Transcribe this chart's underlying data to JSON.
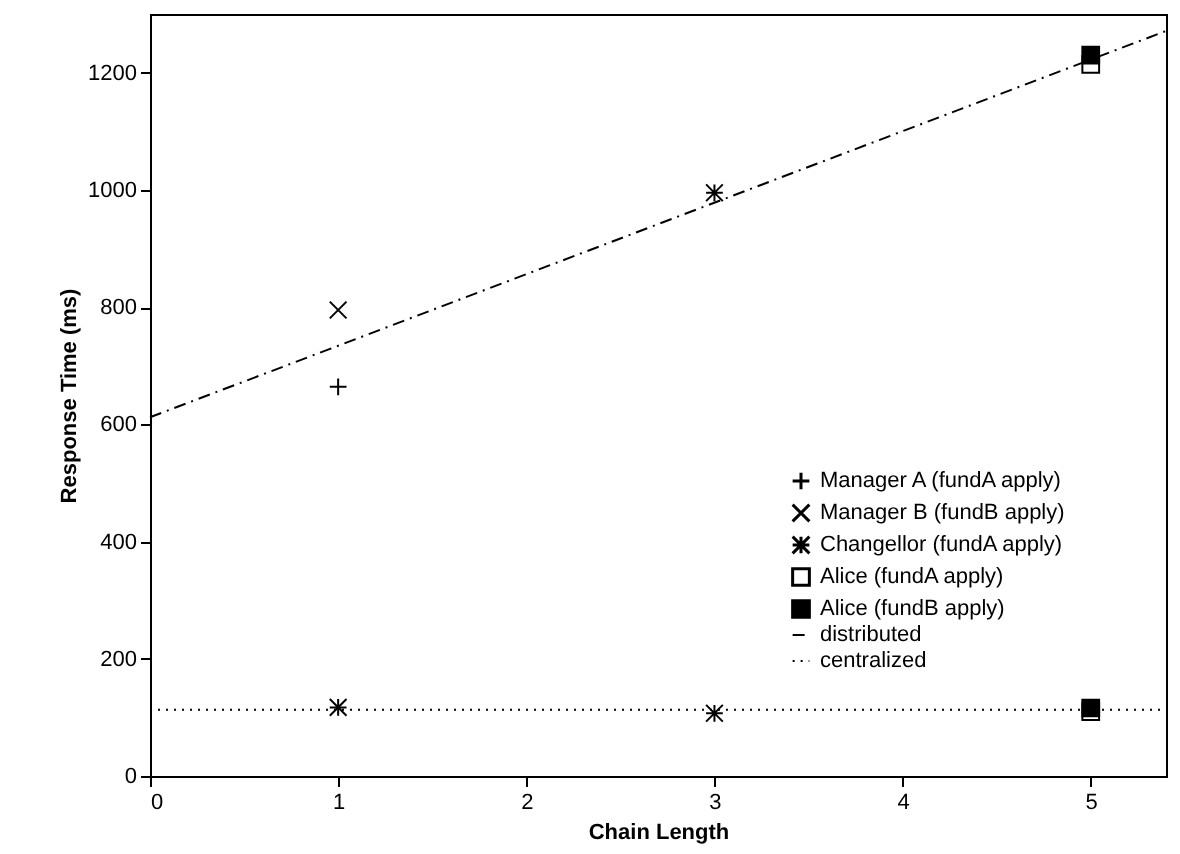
{
  "chart_data": {
    "type": "scatter",
    "xlabel": "Chain Length",
    "ylabel": "Response Time (ms)",
    "xlim": [
      0,
      5.4
    ],
    "ylim": [
      0,
      1300
    ],
    "xticks": [
      0,
      1,
      2,
      3,
      4,
      5
    ],
    "yticks": [
      0,
      200,
      400,
      600,
      800,
      1000,
      1200
    ],
    "grid": false,
    "legend": "right",
    "series": [
      {
        "name": "Manager A (fundA apply)",
        "color": "#000000",
        "marker": "plus",
        "x": [
          1,
          1
        ],
        "values": [
          664,
          117
        ]
      },
      {
        "name": "Manager B (fundB apply)",
        "color": "#000000",
        "marker": "x",
        "x": [
          1,
          1
        ],
        "values": [
          795,
          117
        ]
      },
      {
        "name": "Changellor (fundA apply)",
        "color": "#000000",
        "marker": "cross",
        "x": [
          3,
          3
        ],
        "values": [
          995,
          107
        ]
      },
      {
        "name": "Alice (fundA apply)",
        "color": "#000000",
        "marker": "square",
        "x": [
          5,
          5
        ],
        "values": [
          1214,
          110
        ]
      },
      {
        "name": "Alice (fundB apply)",
        "color": "#000000",
        "x": [
          5,
          5
        ],
        "values": [
          1230,
          116
        ]
      },
      {
        "name": "distributed",
        "type": "line",
        "color": "#000000",
        "line_style": "dashdot",
        "x": [
          0,
          5.4
        ],
        "values": [
          612,
          1271
        ]
      },
      {
        "name": "centralized",
        "type": "line",
        "color": "#000000",
        "line_style": "dotted",
        "x": [
          0,
          5.4
        ],
        "values": [
          113,
          113
        ]
      }
    ]
  }
}
